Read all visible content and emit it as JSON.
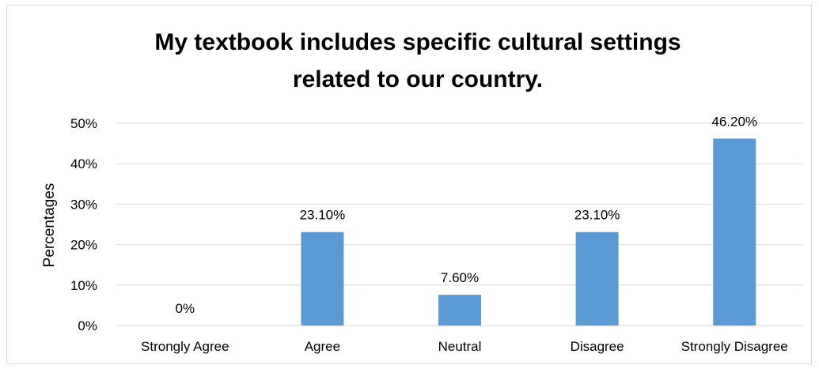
{
  "chart_data": {
    "type": "bar",
    "title_lines": [
      "My textbook includes specific cultural settings",
      "related to our country."
    ],
    "xlabel": "",
    "ylabel": "Percentages",
    "categories": [
      "Strongly Agree",
      "Agree",
      "Neutral",
      "Disagree",
      "Strongly Disagree"
    ],
    "values": [
      0,
      23.1,
      7.6,
      23.1,
      46.2
    ],
    "data_labels": [
      "0%",
      "23.10%",
      "7.60%",
      "23.10%",
      "46.20%"
    ],
    "ylim": [
      0,
      50
    ],
    "yticks": [
      {
        "value": 0,
        "label": "0%"
      },
      {
        "value": 10,
        "label": "10%"
      },
      {
        "value": 20,
        "label": "20%"
      },
      {
        "value": 30,
        "label": "30%"
      },
      {
        "value": 40,
        "label": "40%"
      },
      {
        "value": 50,
        "label": "50%"
      }
    ],
    "grid": true,
    "legend": "none",
    "bar_color": "#5B9BD5",
    "grid_color": "#d9d9d9"
  }
}
